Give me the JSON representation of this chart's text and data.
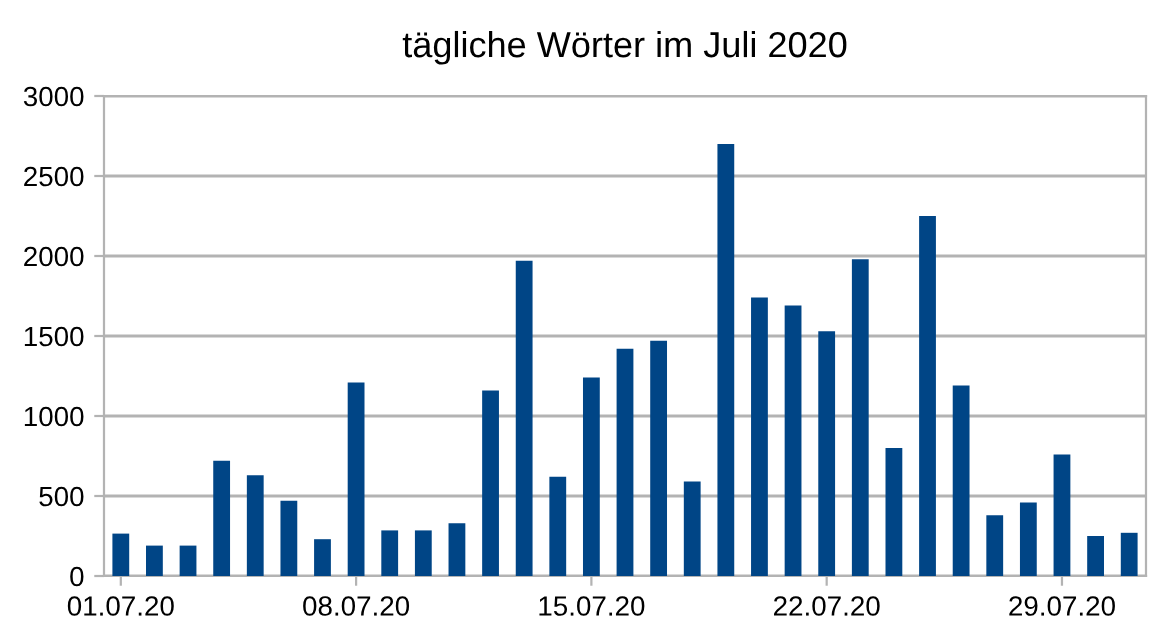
{
  "chart_data": {
    "type": "bar",
    "title": "tägliche Wörter im Juli 2020",
    "categories": [
      "01.07.20",
      null,
      null,
      null,
      null,
      null,
      null,
      "08.07.20",
      null,
      null,
      null,
      null,
      null,
      null,
      "15.07.20",
      null,
      null,
      null,
      null,
      null,
      null,
      "22.07.20",
      null,
      null,
      null,
      null,
      null,
      null,
      "29.07.20",
      null,
      null
    ],
    "values": [
      265,
      190,
      190,
      720,
      630,
      470,
      230,
      1210,
      285,
      285,
      330,
      1160,
      1970,
      620,
      1240,
      1420,
      1470,
      590,
      2700,
      1740,
      1690,
      1530,
      1980,
      800,
      2250,
      1190,
      380,
      460,
      760,
      250,
      270
    ],
    "color": "#004586",
    "ylim": [
      0,
      3000
    ],
    "yticks": [
      0,
      500,
      1000,
      1500,
      2000,
      2500,
      3000
    ],
    "grid": "y",
    "legend": false
  }
}
